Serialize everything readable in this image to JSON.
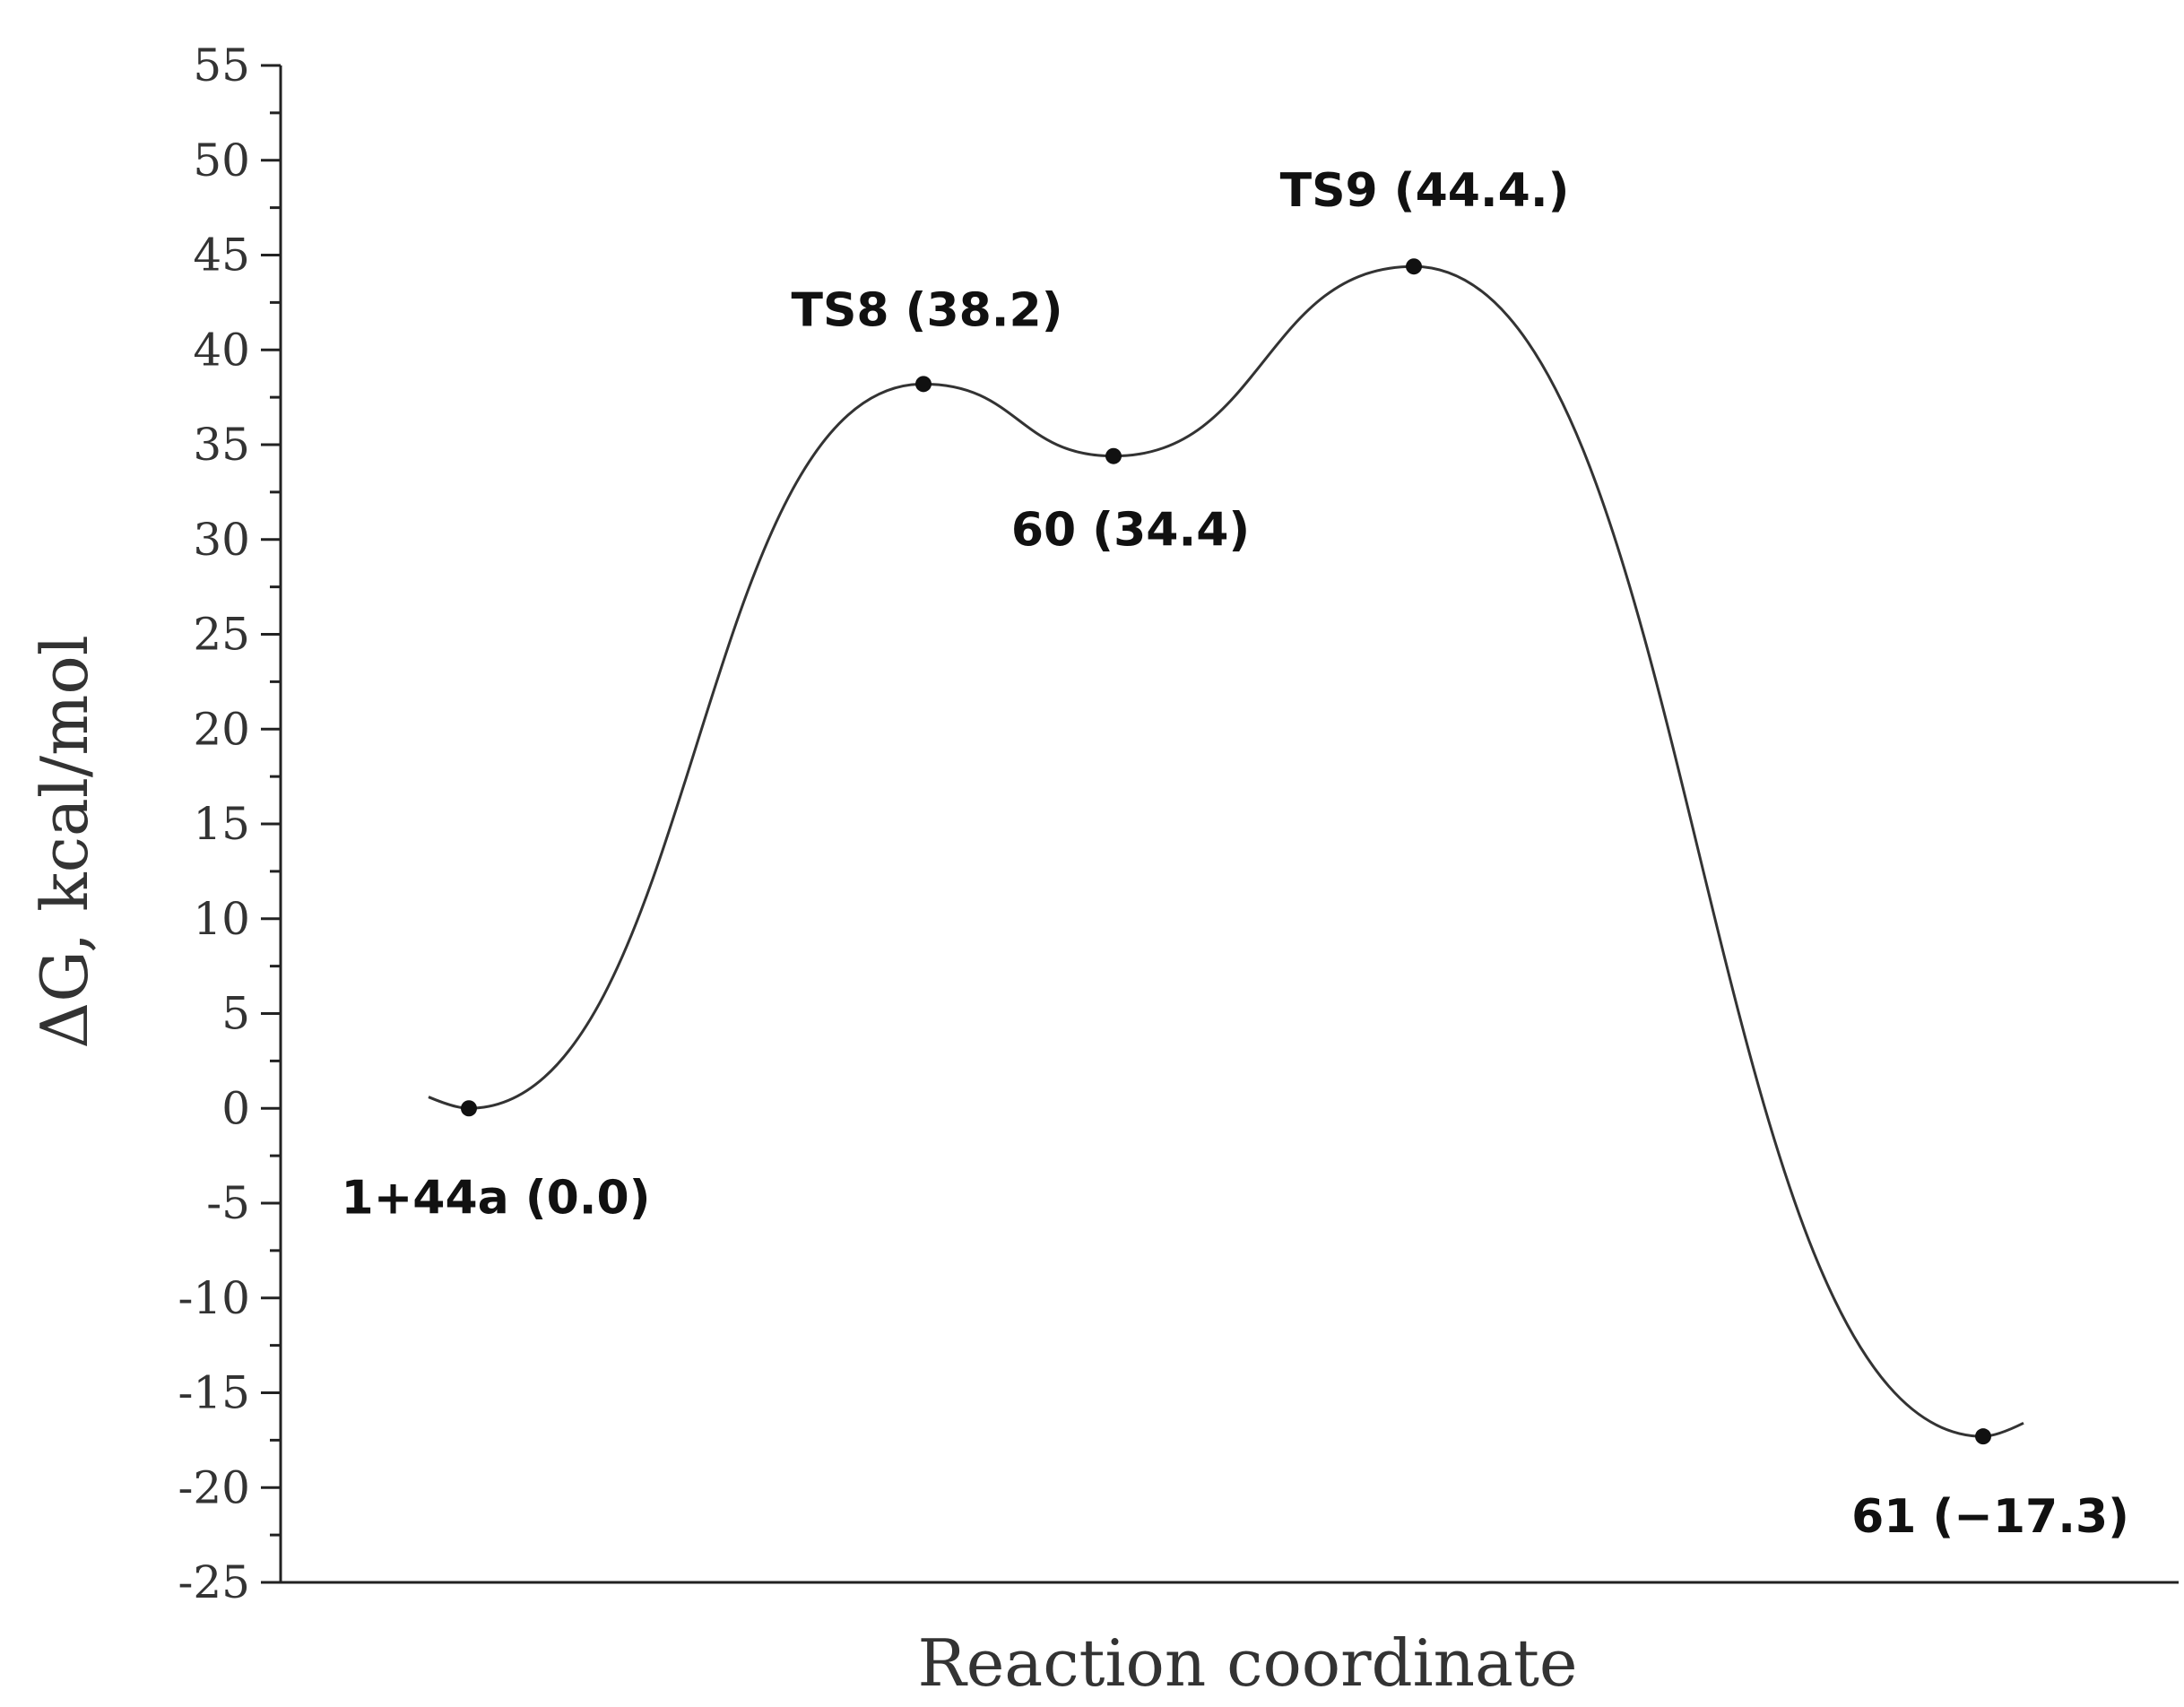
{
  "chart_data": {
    "type": "line",
    "title": "",
    "xlabel": "Reaction coordinate",
    "ylabel": "ΔG, kcal/mol",
    "ylim": [
      -25,
      55
    ],
    "ytick_step": 5,
    "grid": false,
    "legend": "none",
    "series": [
      {
        "points": [
          {
            "label": "1+44a (0.0)",
            "y": 0.0
          },
          {
            "label": "TS8 (38.2)",
            "y": 38.2
          },
          {
            "label": "60 (34.4)",
            "y": 34.4
          },
          {
            "label": "TS9 (44.4.)",
            "y": 44.4
          },
          {
            "label": "61 (−17.3)",
            "y": -17.3
          }
        ]
      }
    ]
  }
}
